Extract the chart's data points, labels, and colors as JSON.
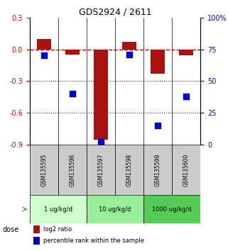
{
  "title": "GDS2924 / 2611",
  "samples": [
    "GSM135595",
    "GSM135596",
    "GSM135597",
    "GSM135598",
    "GSM135599",
    "GSM135600"
  ],
  "log2_ratio": [
    0.1,
    -0.05,
    -0.855,
    0.07,
    -0.23,
    -0.055
  ],
  "percentile_rank": [
    70,
    40,
    2,
    71,
    15,
    38
  ],
  "bar_color": "#aa1111",
  "dot_color": "#0000cc",
  "ylim_left": [
    -0.9,
    0.3
  ],
  "ylim_right": [
    0,
    100
  ],
  "yticks_left": [
    0.3,
    0.0,
    -0.3,
    -0.6,
    -0.9
  ],
  "yticks_right": [
    100,
    75,
    50,
    25,
    0
  ],
  "yticks_right_labels": [
    "100%",
    "75",
    "50",
    "25",
    "0"
  ],
  "groups": [
    {
      "label": "1 ug/kg/d",
      "indices": [
        0,
        1
      ],
      "color": "#ccffcc"
    },
    {
      "label": "10 ug/kg/d",
      "indices": [
        2,
        3
      ],
      "color": "#99ee99"
    },
    {
      "label": "1000 ug/kg/d",
      "indices": [
        4,
        5
      ],
      "color": "#55cc55"
    }
  ],
  "dose_label": "dose",
  "legend_bar_label": "log2 ratio",
  "legend_dot_label": "percentile rank within the sample",
  "hline_color": "#cc0000",
  "dotted_line_color": "#333333",
  "sample_bg_color": "#cccccc",
  "background_color": "#ffffff"
}
